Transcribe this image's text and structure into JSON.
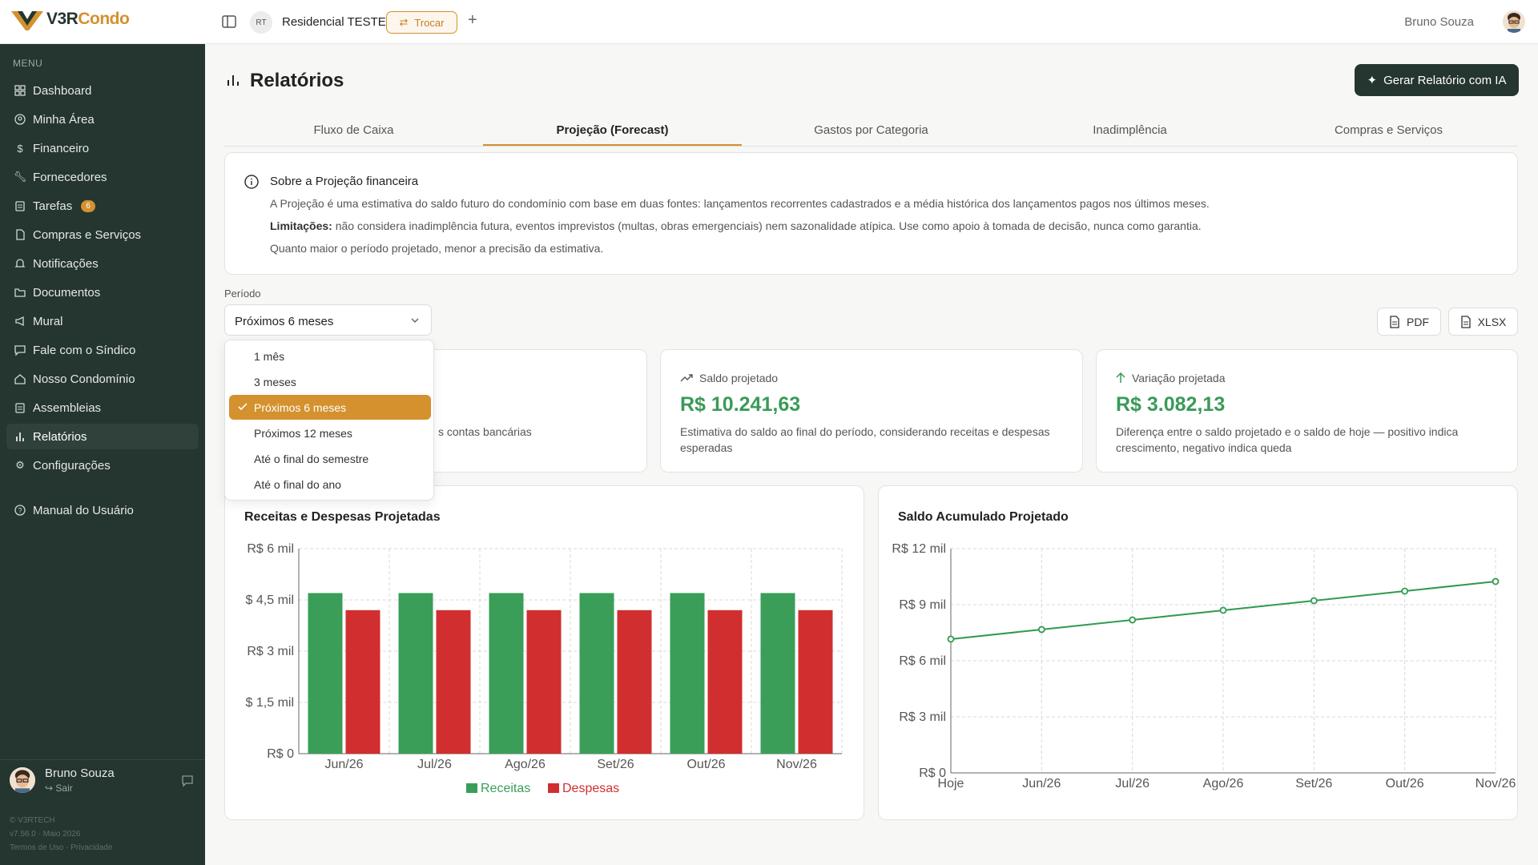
{
  "brand": {
    "logo_prefix": "V3R",
    "logo_suffix": "Condo",
    "accent": "#d4912e",
    "sidebar_bg": "#25352f"
  },
  "topbar": {
    "condo_initials": "RT",
    "condo_name": "Residencial TESTE",
    "switch_label": "Trocar",
    "user_name": "Bruno Souza"
  },
  "sidebar": {
    "menu_label": "MENU",
    "items": [
      {
        "label": "Dashboard",
        "icon": "grid-icon"
      },
      {
        "label": "Minha Área",
        "icon": "user-circle-icon"
      },
      {
        "label": "Financeiro",
        "icon": "dollar-icon"
      },
      {
        "label": "Fornecedores",
        "icon": "wrench-icon"
      },
      {
        "label": "Tarefas",
        "icon": "clipboard-icon",
        "badge": "6"
      },
      {
        "label": "Compras e Serviços",
        "icon": "document-icon"
      },
      {
        "label": "Notificações",
        "icon": "bell-icon"
      },
      {
        "label": "Documentos",
        "icon": "folder-icon"
      },
      {
        "label": "Mural",
        "icon": "megaphone-icon"
      },
      {
        "label": "Fale com o Síndico",
        "icon": "chat-icon"
      },
      {
        "label": "Nosso Condomínio",
        "icon": "home-icon"
      },
      {
        "label": "Assembleias",
        "icon": "clipboard-icon"
      },
      {
        "label": "Relatórios",
        "icon": "bar-chart-icon",
        "active": true
      },
      {
        "label": "Configurações",
        "icon": "gear-icon"
      },
      {
        "label": "Manual do Usuário",
        "icon": "help-icon"
      }
    ],
    "user_name": "Bruno Souza",
    "logout_label": "Sair",
    "copyright": "© V3RTECH",
    "version": "v7.56.0 · Maio 2026",
    "legal": "Termos de Uso · Privacidade"
  },
  "page": {
    "title": "Relatórios",
    "ai_button": "Gerar Relatório com IA",
    "tabs": [
      "Fluxo de Caixa",
      "Projeção (Forecast)",
      "Gastos por Categoria",
      "Inadimplência",
      "Compras e Serviços"
    ],
    "active_tab": 1
  },
  "info": {
    "title": "Sobre a Projeção financeira",
    "line1": "A Projeção é uma estimativa do saldo futuro do condomínio com base em duas fontes: lançamentos recorrentes cadastrados e a média histórica dos lançamentos pagos nos últimos meses.",
    "limit_label": "Limitações:",
    "line2": " não considera inadimplência futura, eventos imprevistos (multas, obras emergenciais) nem sazonalidade atípica. Use como apoio à tomada de decisão, nunca como garantia.",
    "line3": "Quanto maior o período projetado, menor a precisão da estimativa."
  },
  "filter": {
    "label": "Período",
    "selected": "Próximos 6 meses",
    "options": [
      "1 mês",
      "3 meses",
      "Próximos 6 meses",
      "Próximos 12 meses",
      "Até o final do semestre",
      "Até o final do ano"
    ],
    "selected_index": 2
  },
  "export": {
    "pdf": "PDF",
    "xlsx": "XLSX"
  },
  "stats": [
    {
      "label": "",
      "value": "",
      "desc": "s contas bancárias"
    },
    {
      "label": "Saldo projetado",
      "value": "R$ 10.241,63",
      "desc": "Estimativa do saldo ao final do período, considerando receitas e despesas esperadas",
      "icon": "trend-up-icon"
    },
    {
      "label": "Variação projetada",
      "value": "R$ 3.082,13",
      "desc": "Diferença entre o saldo projetado e o saldo de hoje — positivo indica crescimento, negativo indica queda",
      "icon": "arrow-up-icon"
    }
  ],
  "chart_data": [
    {
      "type": "bar",
      "title": "Receitas e Despesas Projetadas",
      "categories": [
        "Jun/26",
        "Jul/26",
        "Ago/26",
        "Set/26",
        "Out/26",
        "Nov/26"
      ],
      "series": [
        {
          "name": "Receitas",
          "color": "#3a9e58",
          "values": [
            4700,
            4700,
            4700,
            4700,
            4700,
            4700
          ]
        },
        {
          "name": "Despesas",
          "color": "#d12f2f",
          "values": [
            4200,
            4200,
            4200,
            4200,
            4200,
            4200
          ]
        }
      ],
      "ylim": [
        0,
        6000
      ],
      "yticks": [
        0,
        1500,
        3000,
        4500,
        6000
      ],
      "ytick_labels": [
        "R$ 0",
        "$ 1,5 mil",
        "R$ 3 mil",
        "$ 4,5 mil",
        "R$ 6 mil"
      ],
      "grid": true,
      "legend": "bottom"
    },
    {
      "type": "line",
      "title": "Saldo Acumulado Projetado",
      "x": [
        "Hoje",
        "Jun/26",
        "Jul/26",
        "Ago/26",
        "Set/26",
        "Out/26",
        "Nov/26"
      ],
      "series": [
        {
          "color": "#2f9a4f",
          "values": [
            7159.5,
            7673.2,
            8186.9,
            8700.6,
            9214.3,
            9727.9,
            10241.63
          ]
        }
      ],
      "ylim": [
        0,
        12000
      ],
      "yticks": [
        0,
        3000,
        6000,
        9000,
        12000
      ],
      "ytick_labels": [
        "R$ 0",
        "R$ 3 mil",
        "R$ 6 mil",
        "R$ 9 mil",
        "R$ 12 mil"
      ],
      "grid": true
    }
  ]
}
